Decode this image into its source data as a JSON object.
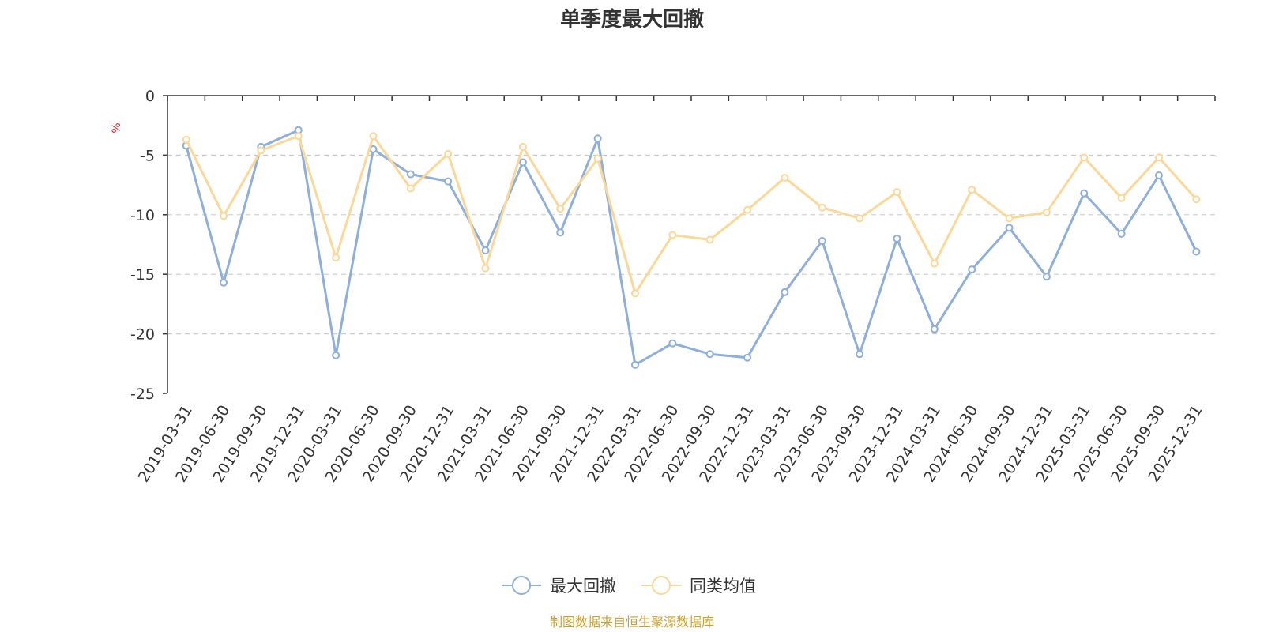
{
  "chart_data": {
    "type": "line",
    "title": "单季度最大回撤",
    "ylabel": "%",
    "ylim": [
      -25,
      0
    ],
    "yticks": [
      "0",
      "-5",
      "-10",
      "-15",
      "-20",
      "-25"
    ],
    "grid": "horizontal dashed",
    "legend_position": "bottom-center",
    "categories": [
      "2019-03-31",
      "2019-06-30",
      "2019-09-30",
      "2019-12-31",
      "2020-03-31",
      "2020-06-30",
      "2020-09-30",
      "2020-12-31",
      "2021-03-31",
      "2021-06-30",
      "2021-09-30",
      "2021-12-31",
      "2022-03-31",
      "2022-06-30",
      "2022-09-30",
      "2022-12-31",
      "2023-03-31",
      "2023-06-30",
      "2023-09-30",
      "2023-12-31",
      "2024-03-31",
      "2024-06-30",
      "2024-09-30",
      "2024-12-31",
      "2025-03-31",
      "2025-06-30",
      "2025-09-30",
      "2025-12-31"
    ],
    "series": [
      {
        "name": "最大回撤",
        "color": "#8eaedc",
        "values": [
          -4.2,
          -15.7,
          -4.3,
          -2.9,
          -21.8,
          -4.5,
          -6.6,
          -7.2,
          -13.0,
          -5.6,
          -11.5,
          -3.6,
          -22.6,
          -20.8,
          -21.7,
          -22.0,
          -16.5,
          -12.2,
          -21.7,
          -12.0,
          -19.6,
          -14.6,
          -11.1,
          -15.2,
          -8.2,
          -11.6,
          -6.7,
          -13.1
        ]
      },
      {
        "name": "同类均值",
        "color": "#fbd899",
        "values": [
          -3.7,
          -10.1,
          -4.6,
          -3.4,
          -13.6,
          -3.4,
          -7.8,
          -4.9,
          -14.5,
          -4.3,
          -9.5,
          -5.3,
          -16.6,
          -11.7,
          -12.1,
          -9.6,
          -6.9,
          -9.4,
          -10.3,
          -8.1,
          -14.1,
          -7.9,
          -10.3,
          -9.8,
          -5.2,
          -8.6,
          -5.2,
          -8.7
        ]
      }
    ],
    "source_note": "制图数据来自恒生聚源数据库"
  }
}
